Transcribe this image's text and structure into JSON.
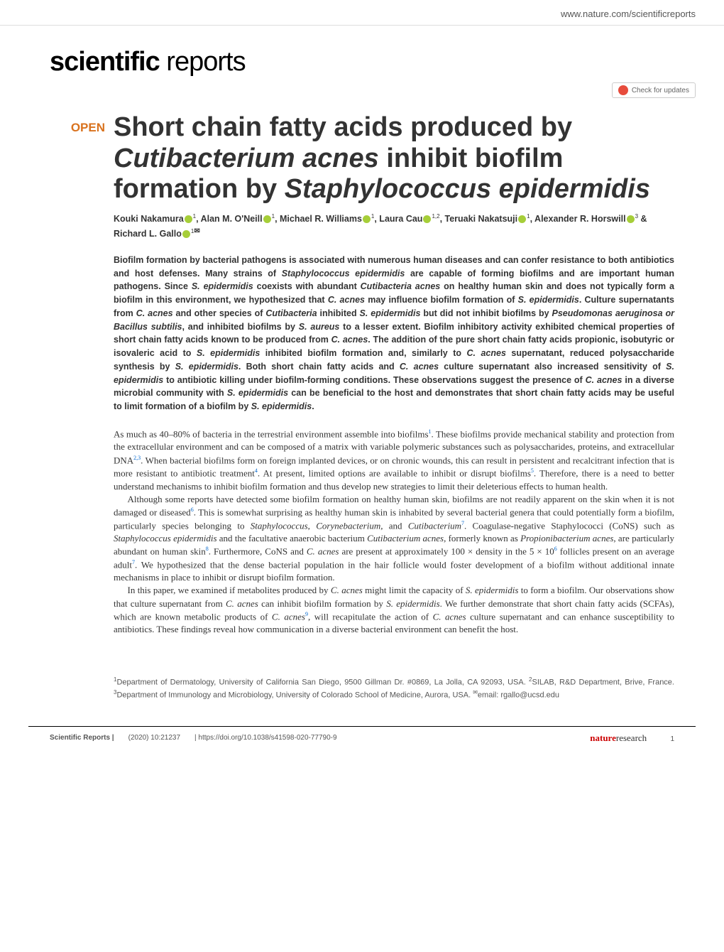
{
  "header": {
    "site_url": "www.nature.com/scientificreports"
  },
  "journal": {
    "name_bold": "scientific",
    "name_light": "reports",
    "check_updates": "Check for updates"
  },
  "article": {
    "open_label": "OPEN",
    "title_html": "Short chain fatty acids produced by <em>Cutibacterium acnes</em> inhibit biofilm formation by <em>Staphylococcus epidermidis</em>",
    "authors_html": "Kouki Nakamura<span class='orcid'></span><sup>1</sup>, Alan M. O'Neill<span class='orcid'></span><sup>1</sup>, Michael R. Williams<span class='orcid'></span><sup>1</sup>, Laura Cau<span class='orcid'></span><sup>1,2</sup>, Teruaki Nakatsuji<span class='orcid'></span><sup>1</sup>, Alexander R. Horswill<span class='orcid'></span><sup>3</sup> & Richard L. Gallo<span class='orcid'></span><sup>1</sup><span class='envelope'>✉</span>",
    "abstract_html": "Biofilm formation by bacterial pathogens is associated with numerous human diseases and can confer resistance to both antibiotics and host defenses. Many strains of <em>Staphylococcus epidermidis</em> are capable of forming biofilms and are important human pathogens. Since <em>S. epidermidis</em> coexists with abundant <em>Cutibacteria acnes</em> on healthy human skin and does not typically form a biofilm in this environment, we hypothesized that <em>C. acnes</em> may influence biofilm formation of <em>S. epidermidis</em>. Culture supernatants from <em>C. acnes</em> and other species of <em>Cutibacteria</em> inhibited <em>S. epidermidis</em> but did not inhibit biofilms by <em>Pseudomonas aeruginosa or Bacillus subtilis</em>, and inhibited biofilms by <em>S. aureus</em> to a lesser extent. Biofilm inhibitory activity exhibited chemical properties of short chain fatty acids known to be produced from <em>C. acnes</em>. The addition of the pure short chain fatty acids propionic, isobutyric or isovaleric acid to <em>S. epidermidis</em> inhibited biofilm formation and, similarly to <em>C. acnes</em> supernatant, reduced polysaccharide synthesis by <em>S. epidermidis</em>. Both short chain fatty acids and <em>C. acnes</em> culture supernatant also increased sensitivity of <em>S. epidermidis</em> to antibiotic killing under biofilm-forming conditions. These observations suggest the presence of <em>C. acnes</em> in a diverse microbial community with <em>S. epidermidis</em> can be beneficial to the host and demonstrates that short chain fatty acids may be useful to limit formation of a biofilm by <em>S. epidermidis</em>.",
    "body_paragraphs": [
      "As much as 40–80% of bacteria in the terrestrial environment assemble into biofilms<sup>1</sup>. These biofilms provide mechanical stability and protection from the extracellular environment and can be composed of a matrix with variable polymeric substances such as polysaccharides, proteins, and extracellular DNA<sup>2,3</sup>. When bacterial biofilms form on foreign implanted devices, or on chronic wounds, this can result in persistent and recalcitrant infection that is more resistant to antibiotic treatment<sup>4</sup>. At present, limited options are available to inhibit or disrupt biofilms<sup>5</sup>. Therefore, there is a need to better understand mechanisms to inhibit biofilm formation and thus develop new strategies to limit their deleterious effects to human health.",
      "Although some reports have detected some biofilm formation on healthy human skin, biofilms are not readily apparent on the skin when it is not damaged or diseased<sup>6</sup>. This is somewhat surprising as healthy human skin is inhabited by several bacterial genera that could potentially form a biofilm, particularly species belonging to <em>Staphylococcus</em>, <em>Corynebacterium</em>, and <em>Cutibacterium</em><sup>7</sup>. Coagulase-negative Staphylococci (CoNS) such as <em>Staphylococcus epidermidis</em> and the facultative anaerobic bacterium <em>Cutibacterium acnes</em>, formerly known as <em>Propionibacterium acnes</em>, are particularly abundant on human skin<sup>8</sup>. Furthermore, CoNS and <em>C. acnes</em> are present at approximately 100 × density in the 5 × 10<sup>6</sup> follicles present on an average adult<sup>7</sup>. We hypothesized that the dense bacterial population in the hair follicle would foster development of a biofilm without additional innate mechanisms in place to inhibit or disrupt biofilm formation.",
      "In this paper, we examined if metabolites produced by <em>C. acnes</em> might limit the capacity of <em>S. epidermidis</em> to form a biofilm. Our observations show that culture supernatant from <em>C. acnes</em> can inhibit biofilm formation by <em>S. epidermidis</em>. We further demonstrate that short chain fatty acids (SCFAs), which are known metabolic products of <em>C. acnes</em><sup>9</sup>, will recapitulate the action of <em>C. acnes</em> culture supernatant and can enhance susceptibility to antibiotics. These findings reveal how communication in a diverse bacterial environment can benefit the host."
    ],
    "affiliations_html": "<sup>1</sup>Department of Dermatology, University of California San Diego, 9500 Gillman Dr. #0869, La Jolla, CA 92093, USA. <sup>2</sup>SILAB, R&D Department, Brive, France. <sup>3</sup>Department of Immunology and Microbiology, University of Colorado School of Medicine, Aurora, USA. <sup>✉</sup>email: rgallo@ucsd.edu"
  },
  "footer": {
    "journal": "Scientific Reports |",
    "citation": "(2020) 10:21237",
    "doi": "| https://doi.org/10.1038/s41598-020-77790-9",
    "publisher_red": "nature",
    "publisher_rest": "research",
    "page": "1"
  }
}
